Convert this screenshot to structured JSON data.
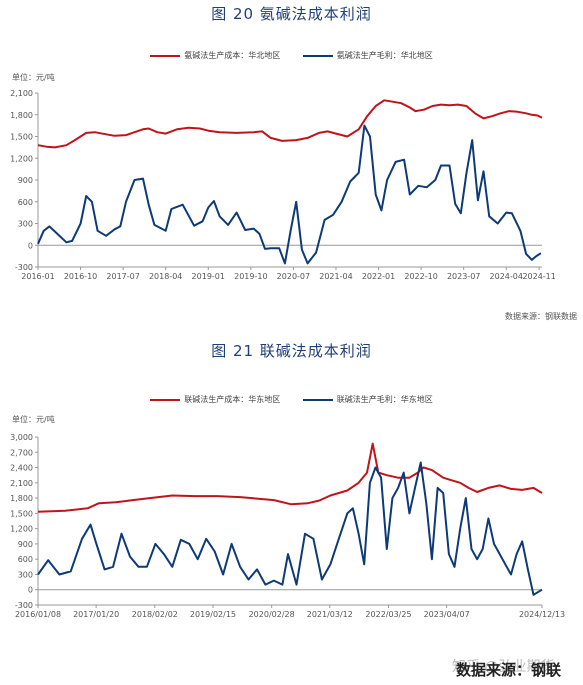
{
  "colors": {
    "cost": "#c0141b",
    "profit": "#0e3a78",
    "axis": "#999999",
    "title": "#1f3f77"
  },
  "chart_data": [
    {
      "type": "line",
      "title": "图 20 氨碱法成本利润",
      "unit": "单位：元/吨",
      "source": "数据来源：钢联数据",
      "ylim": [
        -300,
        2100
      ],
      "yticks": [
        -300,
        0,
        300,
        600,
        900,
        1200,
        1500,
        1800,
        2100
      ],
      "yticklabels": [
        "-300",
        "0",
        "300",
        "600",
        "900",
        "1,200",
        "1,500",
        "1,800",
        "2,100"
      ],
      "xlim": [
        2016.0,
        2024.88
      ],
      "xticks": [
        2016.0,
        2016.75,
        2017.5,
        2018.25,
        2019.0,
        2019.75,
        2020.5,
        2021.25,
        2022.0,
        2022.75,
        2023.5,
        2024.25,
        2024.83
      ],
      "xticklabels": [
        "2016-01",
        "2016-10",
        "2017-07",
        "2018-04",
        "2019-01",
        "2019-10",
        "2020-07",
        "2021-04",
        "2022-01",
        "2022-10",
        "2023-07",
        "2024-04",
        "2024-11"
      ],
      "legend_position": "top",
      "grid": false,
      "series": [
        {
          "name": "氨碱法生产成本：华北地区",
          "color": "#c0141b",
          "x": [
            2016.0,
            2016.15,
            2016.3,
            2016.5,
            2016.65,
            2016.85,
            2017.0,
            2017.2,
            2017.35,
            2017.55,
            2017.7,
            2017.85,
            2017.95,
            2018.1,
            2018.25,
            2018.45,
            2018.65,
            2018.85,
            2019.0,
            2019.2,
            2019.5,
            2019.8,
            2019.95,
            2020.1,
            2020.3,
            2020.55,
            2020.75,
            2020.95,
            2021.1,
            2021.25,
            2021.45,
            2021.65,
            2021.8,
            2021.95,
            2022.1,
            2022.25,
            2022.4,
            2022.55,
            2022.65,
            2022.8,
            2022.95,
            2023.1,
            2023.25,
            2023.4,
            2023.55,
            2023.7,
            2023.85,
            2024.0,
            2024.15,
            2024.3,
            2024.45,
            2024.6,
            2024.7,
            2024.8,
            2024.88
          ],
          "y": [
            1380,
            1360,
            1350,
            1380,
            1450,
            1550,
            1560,
            1530,
            1510,
            1520,
            1560,
            1600,
            1610,
            1560,
            1540,
            1600,
            1620,
            1610,
            1580,
            1560,
            1550,
            1560,
            1570,
            1480,
            1440,
            1450,
            1480,
            1550,
            1570,
            1540,
            1500,
            1600,
            1780,
            1920,
            2000,
            1980,
            1960,
            1900,
            1850,
            1870,
            1920,
            1940,
            1930,
            1940,
            1920,
            1820,
            1750,
            1780,
            1820,
            1850,
            1840,
            1820,
            1800,
            1790,
            1760
          ]
        },
        {
          "name": "氨碱法生产毛利：华北地区",
          "color": "#0e3a78",
          "x": [
            2016.0,
            2016.1,
            2016.2,
            2016.35,
            2016.5,
            2016.6,
            2016.75,
            2016.85,
            2016.95,
            2017.05,
            2017.2,
            2017.35,
            2017.45,
            2017.55,
            2017.7,
            2017.85,
            2017.95,
            2018.05,
            2018.25,
            2018.35,
            2018.55,
            2018.75,
            2018.9,
            2019.0,
            2019.1,
            2019.2,
            2019.35,
            2019.5,
            2019.65,
            2019.8,
            2019.9,
            2020.0,
            2020.1,
            2020.25,
            2020.35,
            2020.45,
            2020.55,
            2020.65,
            2020.75,
            2020.9,
            2021.05,
            2021.2,
            2021.35,
            2021.5,
            2021.65,
            2021.75,
            2021.85,
            2021.95,
            2022.05,
            2022.15,
            2022.3,
            2022.45,
            2022.55,
            2022.7,
            2022.85,
            2023.0,
            2023.1,
            2023.25,
            2023.35,
            2023.45,
            2023.55,
            2023.65,
            2023.75,
            2023.85,
            2023.95,
            2024.1,
            2024.25,
            2024.35,
            2024.5,
            2024.6,
            2024.7,
            2024.78,
            2024.86
          ],
          "y": [
            20,
            200,
            260,
            150,
            40,
            60,
            300,
            680,
            600,
            200,
            130,
            220,
            260,
            600,
            900,
            920,
            560,
            280,
            200,
            500,
            560,
            270,
            330,
            520,
            610,
            400,
            280,
            450,
            210,
            230,
            160,
            -50,
            -40,
            -40,
            -250,
            200,
            600,
            -60,
            -250,
            -100,
            350,
            420,
            600,
            880,
            1000,
            1650,
            1500,
            700,
            480,
            900,
            1150,
            1180,
            700,
            820,
            800,
            900,
            1100,
            1100,
            570,
            440,
            1000,
            1450,
            620,
            1020,
            400,
            300,
            450,
            440,
            200,
            -120,
            -200,
            -150,
            -110
          ]
        }
      ]
    },
    {
      "type": "line",
      "title": "图 21 联碱法成本利润",
      "unit": "单位：元/吨",
      "source": "数据来源：钢联",
      "ylim": [
        -300,
        3000
      ],
      "yticks": [
        -300,
        0,
        300,
        600,
        900,
        1200,
        1500,
        1800,
        2100,
        2400,
        2700,
        3000
      ],
      "yticklabels": [
        "-300",
        "0",
        "300",
        "600",
        "900",
        "1,200",
        "1,500",
        "1,800",
        "2,100",
        "2,400",
        "2,700",
        "3,000"
      ],
      "xlim": [
        2016.02,
        2024.95
      ],
      "xticks": [
        2016.02,
        2017.05,
        2018.09,
        2019.12,
        2020.16,
        2021.19,
        2022.23,
        2023.26,
        2024.95
      ],
      "xticklabels": [
        "2016/01/08",
        "2017/01/20",
        "2018/02/02",
        "2019/02/15",
        "2020/02/28",
        "2021/03/12",
        "2022/03/25",
        "2023/04/07",
        "2024/12/13"
      ],
      "legend_position": "top",
      "grid": false,
      "series": [
        {
          "name": "联碱法生产成本：华东地区",
          "color": "#c0141b",
          "x": [
            2016.02,
            2016.5,
            2016.9,
            2017.1,
            2017.4,
            2017.7,
            2018.0,
            2018.4,
            2018.8,
            2019.2,
            2019.6,
            2019.9,
            2020.2,
            2020.5,
            2020.8,
            2021.0,
            2021.2,
            2021.5,
            2021.7,
            2021.85,
            2021.95,
            2022.05,
            2022.2,
            2022.4,
            2022.6,
            2022.75,
            2022.85,
            2023.0,
            2023.2,
            2023.35,
            2023.5,
            2023.65,
            2023.8,
            2024.0,
            2024.2,
            2024.4,
            2024.6,
            2024.8,
            2024.95
          ],
          "y": [
            1530,
            1550,
            1600,
            1700,
            1720,
            1760,
            1800,
            1850,
            1840,
            1840,
            1820,
            1790,
            1760,
            1680,
            1700,
            1750,
            1850,
            1950,
            2100,
            2300,
            2870,
            2300,
            2250,
            2200,
            2200,
            2300,
            2400,
            2350,
            2200,
            2150,
            2100,
            2000,
            1920,
            2000,
            2050,
            1980,
            1960,
            2000,
            1900
          ]
        },
        {
          "name": "联碱法生产毛利：华东地区",
          "color": "#0e3a78",
          "x": [
            2016.02,
            2016.2,
            2016.4,
            2016.6,
            2016.8,
            2016.95,
            2017.05,
            2017.2,
            2017.35,
            2017.5,
            2017.65,
            2017.8,
            2017.95,
            2018.1,
            2018.25,
            2018.4,
            2018.55,
            2018.7,
            2018.85,
            2019.0,
            2019.15,
            2019.3,
            2019.45,
            2019.6,
            2019.75,
            2019.9,
            2020.05,
            2020.2,
            2020.35,
            2020.45,
            2020.6,
            2020.75,
            2020.9,
            2021.05,
            2021.2,
            2021.35,
            2021.5,
            2021.6,
            2021.7,
            2021.8,
            2021.9,
            2022.0,
            2022.1,
            2022.2,
            2022.3,
            2022.4,
            2022.5,
            2022.6,
            2022.7,
            2022.8,
            2022.9,
            2023.0,
            2023.1,
            2023.2,
            2023.3,
            2023.4,
            2023.5,
            2023.6,
            2023.7,
            2023.8,
            2023.9,
            2024.0,
            2024.1,
            2024.2,
            2024.3,
            2024.4,
            2024.5,
            2024.6,
            2024.7,
            2024.8,
            2024.95
          ],
          "y": [
            300,
            580,
            300,
            360,
            1000,
            1280,
            920,
            400,
            450,
            1100,
            650,
            450,
            450,
            900,
            700,
            450,
            980,
            900,
            600,
            1000,
            750,
            300,
            900,
            450,
            200,
            400,
            100,
            180,
            100,
            700,
            100,
            1100,
            1000,
            200,
            500,
            1000,
            1500,
            1600,
            1100,
            500,
            2100,
            2400,
            2200,
            800,
            1800,
            2000,
            2300,
            1500,
            2000,
            2500,
            1700,
            600,
            2000,
            1900,
            700,
            450,
            1200,
            1800,
            800,
            600,
            800,
            1400,
            900,
            700,
            500,
            300,
            700,
            950,
            400,
            -100,
            0
          ]
        }
      ]
    }
  ],
  "watermark": {
    "text": "数据来源：钢联",
    "faint": "知乎 @弘业期货"
  }
}
